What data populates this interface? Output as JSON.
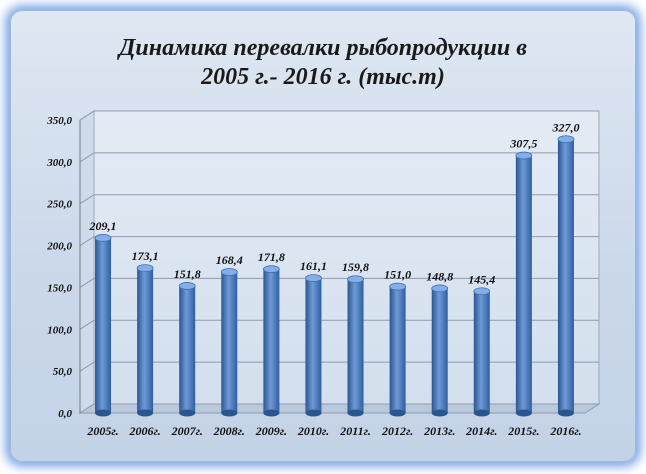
{
  "chart_data": {
    "type": "bar",
    "title_lines": [
      "Динамика перевалки рыбопродукции в",
      "2005 г.- 2016 г. (тыс.т)"
    ],
    "categories": [
      "2005г.",
      "2006г.",
      "2007г.",
      "2008г.",
      "2009г.",
      "2010г.",
      "2011г.",
      "2012г.",
      "2013г.",
      "2014г.",
      "2015г.",
      "2016г."
    ],
    "values": [
      209.1,
      173.1,
      151.8,
      168.4,
      171.8,
      161.1,
      159.8,
      151.0,
      148.8,
      145.4,
      307.5,
      327.0
    ],
    "data_labels": [
      "209,1",
      "173,1",
      "151,8",
      "168,4",
      "171,8",
      "161,1",
      "159,8",
      "151,0",
      "148,8",
      "145,4",
      "307,5",
      "327,0"
    ],
    "y_ticks": [
      0,
      50,
      100,
      150,
      200,
      250,
      300,
      350
    ],
    "y_tick_labels": [
      "0,0",
      "50,0",
      "100,0",
      "150,0",
      "200,0",
      "250,0",
      "300,0",
      "350,0"
    ],
    "ylim": [
      0,
      350
    ],
    "grid": true,
    "legend": "none",
    "bar_color": "#3a6db5",
    "bar_highlight": "#6f9ad8"
  }
}
